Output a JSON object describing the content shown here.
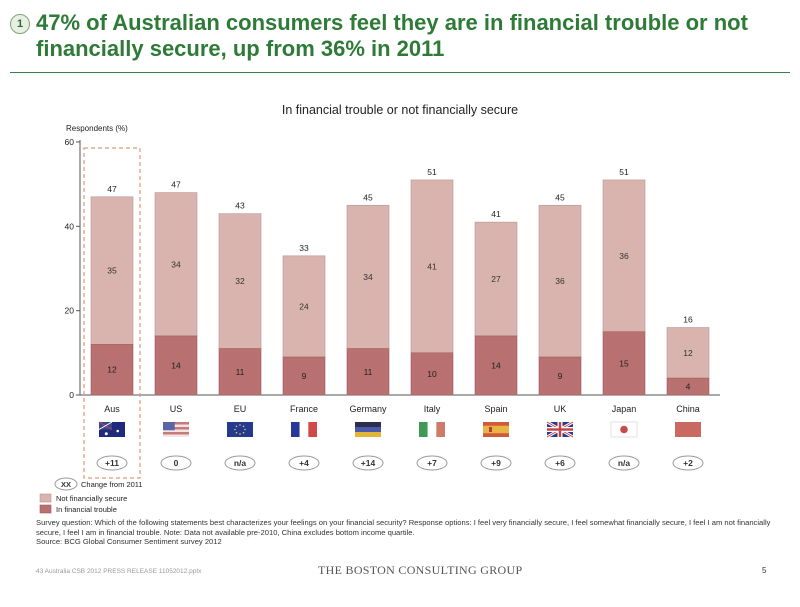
{
  "slide": {
    "number": "1",
    "title": "47% of Australian consumers feel they are in financial trouble or not financially secure, up from 36% in 2011",
    "footnote_lines": [
      "Survey question: Which of the following statements best characterizes your feelings on your financial security? Response options: I feel very financially secure, I feel somewhat financially secure, I feel I am not financially secure, I feel I am in financial trouble. Note: Data not available pre-2010, China excludes bottom income quartile.",
      "Source: BCG Global Consumer Sentiment survey 2012"
    ],
    "footer_left": "43 Australia CSB 2012 PRESS RELEASE 11052012.pptx",
    "footer_logo": "THE BOSTON CONSULTING GROUP",
    "page_number": "5"
  },
  "chart_data": {
    "type": "bar",
    "stacked": true,
    "title": "In financial trouble or not financially secure",
    "ylabel": "Respondents (%)",
    "xlabel": "",
    "ylim": [
      0,
      60
    ],
    "yticks": [
      0,
      20,
      40,
      60
    ],
    "categories": [
      "Aus",
      "US",
      "EU",
      "France",
      "Germany",
      "Italy",
      "Spain",
      "UK",
      "Japan",
      "China"
    ],
    "series": [
      {
        "name": "In financial trouble",
        "color": "#b87070",
        "values": [
          12,
          14,
          11,
          9,
          11,
          10,
          14,
          9,
          15,
          4
        ]
      },
      {
        "name": "Not financially secure",
        "color": "#d9b3ae",
        "values": [
          35,
          34,
          32,
          24,
          34,
          41,
          27,
          36,
          36,
          12
        ]
      }
    ],
    "totals": [
      47,
      47,
      43,
      33,
      45,
      51,
      41,
      45,
      51,
      16
    ],
    "change_from_2011": [
      "+11",
      "0",
      "n/a",
      "+4",
      "+14",
      "+7",
      "+9",
      "+6",
      "n/a",
      "+2"
    ],
    "highlight_category": "Aus",
    "legend": {
      "badge": "XX",
      "badge_label": "Change from 2011",
      "placement": "bottom-left",
      "items": [
        "Not financially secure",
        "In financial trouble"
      ]
    },
    "flag_icons": [
      "australia-flag-icon",
      "usa-flag-icon",
      "eu-flag-icon",
      "france-flag-icon",
      "germany-flag-icon",
      "italy-flag-icon",
      "spain-flag-icon",
      "uk-flag-icon",
      "japan-flag-icon",
      "china-flag-icon"
    ]
  }
}
